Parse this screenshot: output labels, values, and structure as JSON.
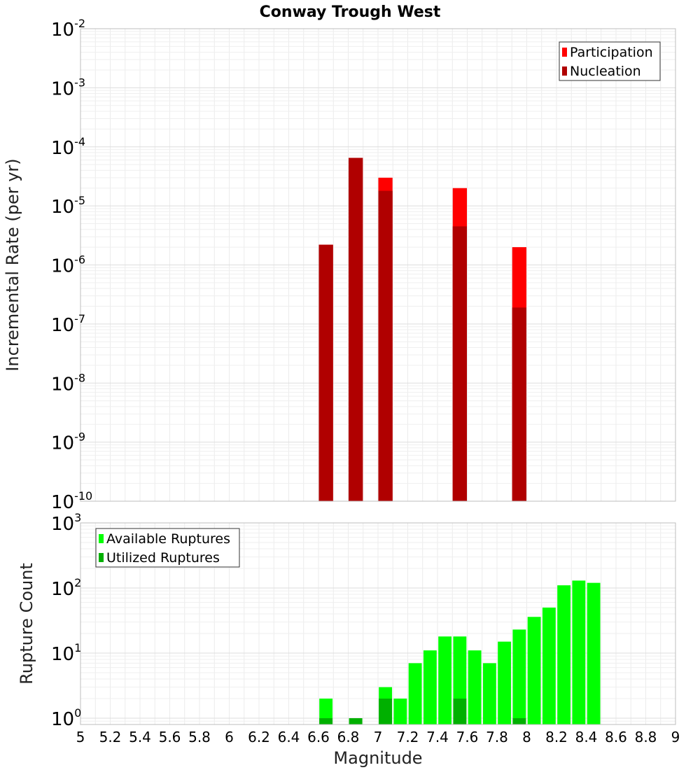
{
  "title": "Conway Trough West",
  "chart_data": [
    {
      "type": "bar",
      "xlabel": "Magnitude",
      "ylabel": "Incremental Rate (per yr)",
      "yscale": "log",
      "ylim": [
        1e-10,
        0.01
      ],
      "xlim": [
        5,
        9
      ],
      "grid": true,
      "legend_position": "top-right",
      "y_tick_labels": [
        {
          "base": "10",
          "exp": "-10"
        },
        {
          "base": "10",
          "exp": "-9"
        },
        {
          "base": "10",
          "exp": "-8"
        },
        {
          "base": "10",
          "exp": "-7"
        },
        {
          "base": "10",
          "exp": "-6"
        },
        {
          "base": "10",
          "exp": "-5"
        },
        {
          "base": "10",
          "exp": "-4"
        },
        {
          "base": "10",
          "exp": "-3"
        },
        {
          "base": "10",
          "exp": "-2"
        }
      ],
      "x": [
        6.65,
        6.85,
        7.05,
        7.55,
        7.95
      ],
      "series": [
        {
          "name": "Participation",
          "color": "#ff0000",
          "values": [
            2.2e-06,
            6.5e-05,
            3e-05,
            2e-05,
            2e-06
          ]
        },
        {
          "name": "Nucleation",
          "color": "#b00000",
          "values": [
            2.2e-06,
            6.5e-05,
            1.8e-05,
            4.5e-06,
            1.9e-07
          ]
        }
      ]
    },
    {
      "type": "bar",
      "xlabel": "Magnitude",
      "ylabel": "Rupture Count",
      "yscale": "log",
      "ylim": [
        0.8,
        1000
      ],
      "xlim": [
        5,
        9
      ],
      "grid": true,
      "legend_position": "top-left",
      "y_tick_labels": [
        {
          "base": "10",
          "exp": "0"
        },
        {
          "base": "10",
          "exp": "1"
        },
        {
          "base": "10",
          "exp": "2"
        },
        {
          "base": "10",
          "exp": "3"
        }
      ],
      "x_tick_labels": [
        "5",
        "5.2",
        "5.4",
        "5.6",
        "5.8",
        "6",
        "6.2",
        "6.4",
        "6.6",
        "6.8",
        "7",
        "7.2",
        "7.4",
        "7.6",
        "7.8",
        "8",
        "8.2",
        "8.4",
        "8.6",
        "8.8",
        "9"
      ],
      "x": [
        6.65,
        6.85,
        7.05,
        7.15,
        7.25,
        7.35,
        7.45,
        7.55,
        7.65,
        7.75,
        7.85,
        7.95,
        8.05,
        8.15,
        8.25,
        8.35,
        8.45
      ],
      "series": [
        {
          "name": "Available Ruptures",
          "color": "#00ff00",
          "values": [
            2,
            1,
            3,
            2,
            7,
            11,
            18,
            18,
            11,
            7,
            15,
            23,
            36,
            50,
            110,
            130,
            120
          ]
        },
        {
          "name": "Utilized Ruptures",
          "color": "#00b000",
          "values": [
            1,
            1,
            2,
            0,
            0,
            0,
            0,
            2,
            0,
            0,
            0,
            1,
            0,
            0,
            0,
            0,
            0
          ]
        }
      ]
    }
  ]
}
